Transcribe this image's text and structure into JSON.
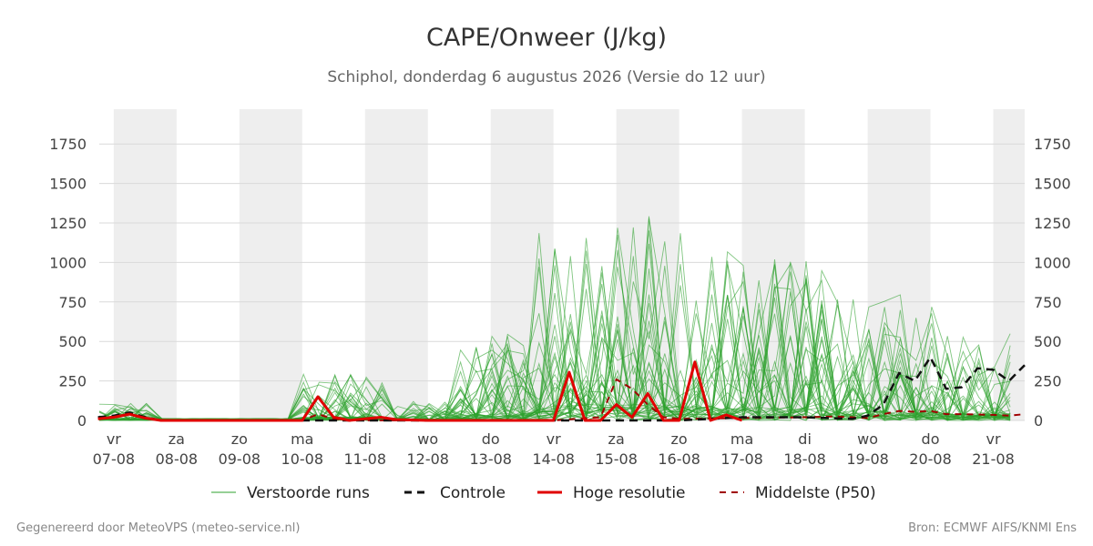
{
  "chart_data": {
    "type": "line",
    "title": "CAPE/Onweer (J/kg)",
    "subtitle": "Schiphol, donderdag  6 augustus 2026 (Versie do 12 uur)",
    "ylim": [
      0,
      1970
    ],
    "yticks": [
      0,
      250,
      500,
      750,
      1000,
      1250,
      1500,
      1750
    ],
    "xlim": [
      -0.23,
      14.5
    ],
    "day_labels": [
      {
        "x": 0,
        "top": "vr",
        "bottom": "07-08"
      },
      {
        "x": 1,
        "top": "za",
        "bottom": "08-08"
      },
      {
        "x": 2,
        "top": "zo",
        "bottom": "09-08"
      },
      {
        "x": 3,
        "top": "ma",
        "bottom": "10-08"
      },
      {
        "x": 4,
        "top": "di",
        "bottom": "11-08"
      },
      {
        "x": 5,
        "top": "wo",
        "bottom": "12-08"
      },
      {
        "x": 6,
        "top": "do",
        "bottom": "13-08"
      },
      {
        "x": 7,
        "top": "vr",
        "bottom": "14-08"
      },
      {
        "x": 8,
        "top": "za",
        "bottom": "15-08"
      },
      {
        "x": 9,
        "top": "zo",
        "bottom": "16-08"
      },
      {
        "x": 10,
        "top": "ma",
        "bottom": "17-08"
      },
      {
        "x": 11,
        "top": "di",
        "bottom": "18-08"
      },
      {
        "x": 12,
        "top": "wo",
        "bottom": "19-08"
      },
      {
        "x": 13,
        "top": "do",
        "bottom": "20-08"
      },
      {
        "x": 14,
        "top": "vr",
        "bottom": "21-08"
      }
    ],
    "weekend_bands": [
      [
        0,
        1
      ],
      [
        2,
        3
      ],
      [
        4,
        5
      ],
      [
        6,
        7
      ],
      [
        8,
        9
      ],
      [
        10,
        11
      ],
      [
        12,
        13
      ],
      [
        14,
        14.5
      ]
    ],
    "series": [
      {
        "name": "Controle",
        "points": [
          [
            -0.25,
            20
          ],
          [
            0,
            30
          ],
          [
            0.25,
            50
          ],
          [
            0.5,
            20
          ],
          [
            0.75,
            0
          ],
          [
            7,
            0
          ],
          [
            9,
            0
          ],
          [
            9.5,
            10
          ],
          [
            10,
            20
          ],
          [
            11,
            20
          ],
          [
            11.75,
            10
          ],
          [
            12,
            30
          ],
          [
            12.25,
            100
          ],
          [
            12.5,
            300
          ],
          [
            12.75,
            250
          ],
          [
            13,
            400
          ],
          [
            13.25,
            200
          ],
          [
            13.5,
            210
          ],
          [
            13.75,
            330
          ],
          [
            14,
            320
          ],
          [
            14.25,
            250
          ],
          [
            14.5,
            350
          ]
        ]
      },
      {
        "name": "Hoge resolutie",
        "points": [
          [
            -0.25,
            10
          ],
          [
            0,
            20
          ],
          [
            0.25,
            40
          ],
          [
            0.5,
            15
          ],
          [
            0.75,
            0
          ],
          [
            3,
            0
          ],
          [
            3.25,
            150
          ],
          [
            3.5,
            20
          ],
          [
            3.75,
            0
          ],
          [
            4.25,
            20
          ],
          [
            4.5,
            5
          ],
          [
            5,
            0
          ],
          [
            7,
            0
          ],
          [
            7.25,
            305
          ],
          [
            7.5,
            0
          ],
          [
            7.75,
            0
          ],
          [
            8,
            100
          ],
          [
            8.25,
            20
          ],
          [
            8.5,
            170
          ],
          [
            8.75,
            0
          ],
          [
            9,
            0
          ],
          [
            9.25,
            370
          ],
          [
            9.5,
            0
          ],
          [
            9.75,
            35
          ],
          [
            10,
            0
          ]
        ]
      },
      {
        "name": "Middelste (P50)",
        "points": [
          [
            -0.25,
            15
          ],
          [
            0,
            25
          ],
          [
            0.25,
            35
          ],
          [
            0.5,
            15
          ],
          [
            0.75,
            0
          ],
          [
            3,
            0
          ],
          [
            3.25,
            40
          ],
          [
            3.5,
            10
          ],
          [
            3.75,
            0
          ],
          [
            7,
            0
          ],
          [
            7.75,
            20
          ],
          [
            8,
            260
          ],
          [
            8.25,
            200
          ],
          [
            8.5,
            100
          ],
          [
            8.75,
            20
          ],
          [
            9,
            10
          ],
          [
            10,
            15
          ],
          [
            11,
            20
          ],
          [
            11.5,
            25
          ],
          [
            12,
            15
          ],
          [
            12.25,
            40
          ],
          [
            12.5,
            60
          ],
          [
            12.75,
            55
          ],
          [
            13,
            60
          ],
          [
            13.25,
            40
          ],
          [
            13.5,
            40
          ],
          [
            14,
            35
          ],
          [
            14.25,
            30
          ],
          [
            14.5,
            40
          ]
        ]
      }
    ],
    "legend": [
      "Verstoorde runs",
      "Controle",
      "Hoge resolutie",
      "Middelste (P50)"
    ],
    "legend_placement": "bottom-center",
    "grid": true
  },
  "colors": {
    "ensemble": "#2ca02c",
    "control": "#111111",
    "hires": "#e00000",
    "median": "#a00000",
    "grid": "#d9d9d9",
    "band": "#eeeeee"
  },
  "footer": {
    "left": "Gegenereerd door MeteoVPS (meteo-service.nl)",
    "right": "Bron: ECMWF AIFS/KNMI Ens"
  }
}
